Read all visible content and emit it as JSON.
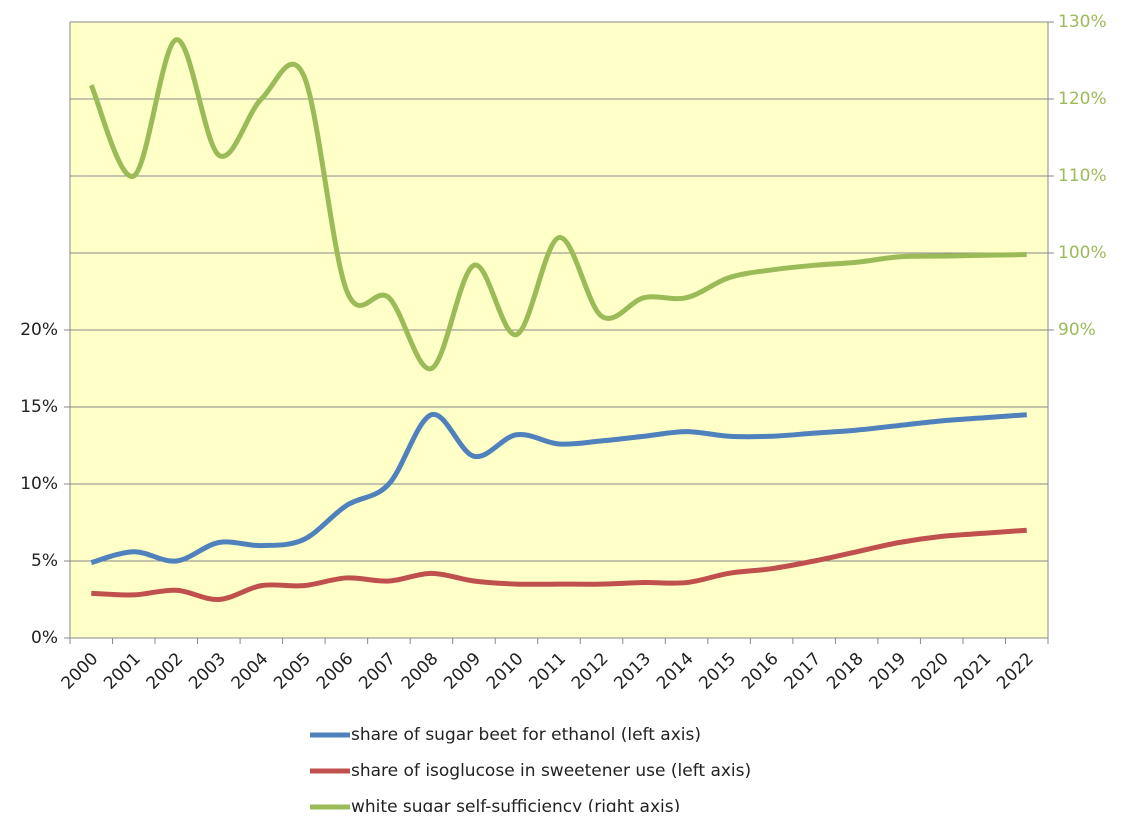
{
  "chart_data": {
    "type": "line",
    "categories": [
      "2000",
      "2001",
      "2002",
      "2003",
      "2004",
      "2005",
      "2006",
      "2007",
      "2008",
      "2009",
      "2010",
      "2011",
      "2012",
      "2013",
      "2014",
      "2015",
      "2016",
      "2017",
      "2018",
      "2019",
      "2020",
      "2021",
      "2022"
    ],
    "series": [
      {
        "name": "share of sugar beet for ethanol (left axis)",
        "color": "#4f81bd",
        "values": [
          4.9,
          5.6,
          5.0,
          6.2,
          6.0,
          6.4,
          8.6,
          10.0,
          14.5,
          11.8,
          13.2,
          12.6,
          12.8,
          13.1,
          13.4,
          13.1,
          13.1,
          13.3,
          13.5,
          13.8,
          14.1,
          14.3,
          14.5
        ]
      },
      {
        "name": "share of isoglucose in sweetener use (left axis)",
        "color": "#c0504d",
        "values": [
          2.9,
          2.8,
          3.1,
          2.5,
          3.4,
          3.4,
          3.9,
          3.7,
          4.2,
          3.7,
          3.5,
          3.5,
          3.5,
          3.6,
          3.6,
          4.2,
          4.5,
          5.0,
          5.6,
          6.2,
          6.6,
          6.8,
          7.0
        ]
      },
      {
        "name": "white sugar self-sufficiency (right axis)",
        "color": "#9bbb59",
        "axis": "y2",
        "values": [
          121.8,
          110,
          127.7,
          112.7,
          120,
          123,
          95.2,
          94.2,
          85,
          98.4,
          89.4,
          102,
          91.8,
          94.2,
          94.2,
          96.8,
          97.8,
          98.4,
          98.8,
          99.5,
          99.6,
          99.7,
          99.8
        ]
      }
    ],
    "ylim": [
      0,
      40
    ],
    "yticks": [
      {
        "value": 0,
        "label": "0%"
      },
      {
        "value": 5,
        "label": "5%"
      },
      {
        "value": 10,
        "label": "10%"
      },
      {
        "value": 15,
        "label": "15%"
      },
      {
        "value": 20,
        "label": "20%"
      }
    ],
    "y2lim": [
      50,
      130
    ],
    "y2ticks": [
      {
        "value": 90,
        "label": "90%"
      },
      {
        "value": 100,
        "label": "100%"
      },
      {
        "value": 110,
        "label": "110%"
      },
      {
        "value": 120,
        "label": "120%"
      },
      {
        "value": 130,
        "label": "130%"
      }
    ],
    "grid": true,
    "legend": "bottom"
  }
}
